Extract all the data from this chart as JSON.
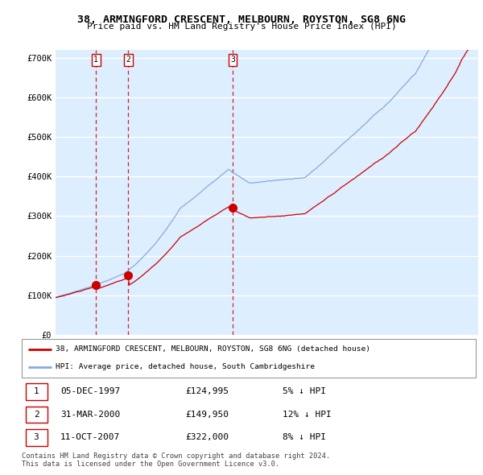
{
  "title": "38, ARMINGFORD CRESCENT, MELBOURN, ROYSTON, SG8 6NG",
  "subtitle": "Price paid vs. HM Land Registry's House Price Index (HPI)",
  "xlim": [
    1995.0,
    2025.5
  ],
  "ylim": [
    0,
    720000
  ],
  "yticks": [
    0,
    100000,
    200000,
    300000,
    400000,
    500000,
    600000,
    700000
  ],
  "ytick_labels": [
    "£0",
    "£100K",
    "£200K",
    "£300K",
    "£400K",
    "£500K",
    "£600K",
    "£700K"
  ],
  "sale_dates_year": [
    1997.92,
    2000.25,
    2007.78
  ],
  "sale_prices": [
    124995,
    149950,
    322000
  ],
  "sale_labels": [
    "1",
    "2",
    "3"
  ],
  "red_line_color": "#cc0000",
  "blue_line_color": "#88aadd",
  "marker_color": "#cc0000",
  "vline_color": "#cc0000",
  "bg_color": "#ddeeff",
  "grid_color": "#ffffff",
  "legend_entries": [
    "38, ARMINGFORD CRESCENT, MELBOURN, ROYSTON, SG8 6NG (detached house)",
    "HPI: Average price, detached house, South Cambridgeshire"
  ],
  "table_rows": [
    [
      "1",
      "05-DEC-1997",
      "£124,995",
      "5% ↓ HPI"
    ],
    [
      "2",
      "31-MAR-2000",
      "£149,950",
      "12% ↓ HPI"
    ],
    [
      "3",
      "11-OCT-2007",
      "£322,000",
      "8% ↓ HPI"
    ]
  ],
  "footnote1": "Contains HM Land Registry data © Crown copyright and database right 2024.",
  "footnote2": "This data is licensed under the Open Government Licence v3.0."
}
